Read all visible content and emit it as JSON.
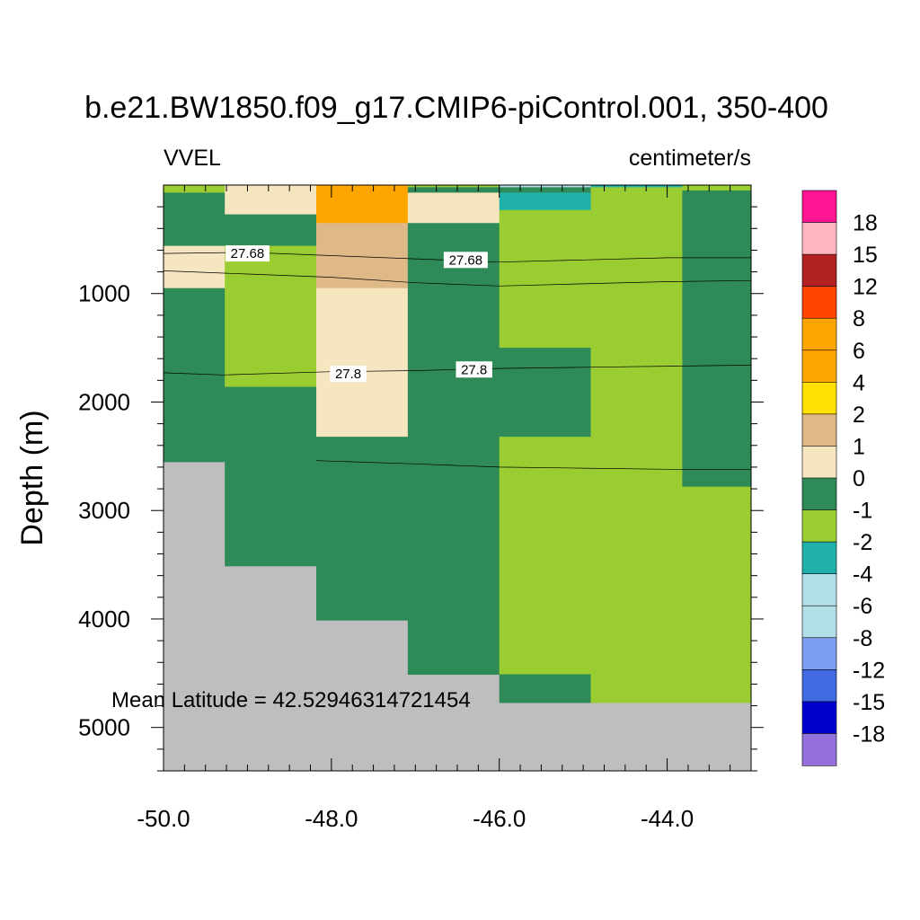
{
  "chart_data": {
    "type": "heatmap",
    "title": "b.e21.BW1850.f09_g17.CMIP6-piControl.001, 350-400",
    "left_label": "VVEL",
    "right_label": "centimeter/s",
    "xlabel": "",
    "ylabel": "Depth (m)",
    "xlim": [
      -50.0,
      -43.0
    ],
    "ylim": [
      5400,
      0
    ],
    "x_ticks": [
      -50.0,
      -48.0,
      -46.0,
      -44.0
    ],
    "x_tick_labels": [
      "-50.0",
      "-48.0",
      "-46.0",
      "-44.0"
    ],
    "y_ticks": [
      1000,
      2000,
      3000,
      4000,
      5000
    ],
    "y_tick_labels": [
      "1000",
      "2000",
      "3000",
      "4000",
      "5000"
    ],
    "annotation": "Mean Latitude = 42.52946314721454",
    "colorbar": {
      "labels": [
        "18",
        "15",
        "12",
        "8",
        "6",
        "4",
        "2",
        "1",
        "0",
        "-1",
        "-2",
        "-4",
        "-6",
        "-8",
        "-12",
        "-15",
        "-18"
      ],
      "colors": [
        "#ff1493",
        "#ffb6c1",
        "#b22222",
        "#ff4500",
        "#ffa500",
        "#ffa500",
        "#ffe000",
        "#deb887",
        "#f5e6c0",
        "#2e8b57",
        "#9acd32",
        "#20b2aa",
        "#b0e0e6",
        "#b0e0e6",
        "#7b9ef0",
        "#4169e1",
        "#0000cd",
        "#9370db"
      ]
    },
    "land_color": "#bebebe",
    "columns": [
      {
        "x": [
          -50.0,
          -49.27
        ],
        "cells": [
          [
            0,
            70,
            -1
          ],
          [
            70,
            560,
            0
          ],
          [
            560,
            950,
            1
          ],
          [
            950,
            2550,
            0
          ]
        ],
        "bottom": 2550
      },
      {
        "x": [
          -49.27,
          -48.18
        ],
        "cells": [
          [
            0,
            270,
            1
          ],
          [
            270,
            560,
            0
          ],
          [
            560,
            1860,
            -1
          ],
          [
            1860,
            3510,
            0
          ]
        ],
        "bottom": 3510
      },
      {
        "x": [
          -48.18,
          -47.09
        ],
        "cells": [
          [
            0,
            350,
            6
          ],
          [
            350,
            950,
            2
          ],
          [
            950,
            2320,
            1
          ],
          [
            2320,
            4010,
            0
          ]
        ],
        "bottom": 4010
      },
      {
        "x": [
          -47.09,
          -46.0
        ],
        "cells": [
          [
            0,
            20,
            -1
          ],
          [
            20,
            70,
            0
          ],
          [
            70,
            350,
            1
          ],
          [
            350,
            4510,
            0
          ]
        ],
        "bottom": 4510
      },
      {
        "x": [
          -46.0,
          -44.91
        ],
        "cells": [
          [
            0,
            20,
            -4
          ],
          [
            20,
            70,
            0
          ],
          [
            70,
            230,
            -2
          ],
          [
            230,
            1500,
            -1
          ],
          [
            1500,
            2320,
            0
          ],
          [
            2320,
            4510,
            -1
          ],
          [
            4510,
            4770,
            0
          ]
        ],
        "bottom": 4770
      },
      {
        "x": [
          -44.91,
          -43.82
        ],
        "cells": [
          [
            0,
            20,
            -2
          ],
          [
            20,
            4770,
            -1
          ]
        ],
        "bottom": 4770
      },
      {
        "x": [
          -43.82,
          -43.0
        ],
        "cells": [
          [
            0,
            50,
            -1
          ],
          [
            50,
            2780,
            0
          ],
          [
            2780,
            4770,
            -1
          ]
        ],
        "bottom": 4770
      }
    ],
    "contours": [
      {
        "level": "27.68",
        "points": [
          [
            -50.0,
            630
          ],
          [
            -49.0,
            620
          ],
          [
            -48.0,
            650
          ],
          [
            -47.0,
            680
          ],
          [
            -46.0,
            710
          ],
          [
            -45.0,
            690
          ],
          [
            -44.0,
            670
          ],
          [
            -43.0,
            670
          ]
        ],
        "labels": [
          [
            -49.0,
            630
          ],
          [
            -46.4,
            690
          ]
        ]
      },
      {
        "level": "",
        "points": [
          [
            -50.0,
            790
          ],
          [
            -49.0,
            820
          ],
          [
            -48.0,
            850
          ],
          [
            -47.0,
            900
          ],
          [
            -46.0,
            930
          ],
          [
            -45.0,
            910
          ],
          [
            -44.0,
            890
          ],
          [
            -43.0,
            880
          ]
        ],
        "labels": []
      },
      {
        "level": "27.8",
        "points": [
          [
            -50.0,
            1730
          ],
          [
            -49.3,
            1750
          ],
          [
            -48.0,
            1720
          ],
          [
            -47.0,
            1710
          ],
          [
            -46.0,
            1690
          ],
          [
            -45.0,
            1680
          ],
          [
            -44.0,
            1670
          ],
          [
            -43.0,
            1660
          ]
        ],
        "labels": [
          [
            -47.8,
            1740
          ],
          [
            -46.3,
            1700
          ]
        ]
      },
      {
        "level": "",
        "points": [
          [
            -48.18,
            2540
          ],
          [
            -47.0,
            2570
          ],
          [
            -46.0,
            2600
          ],
          [
            -45.0,
            2610
          ],
          [
            -44.0,
            2620
          ],
          [
            -43.0,
            2620
          ]
        ],
        "labels": []
      }
    ]
  }
}
